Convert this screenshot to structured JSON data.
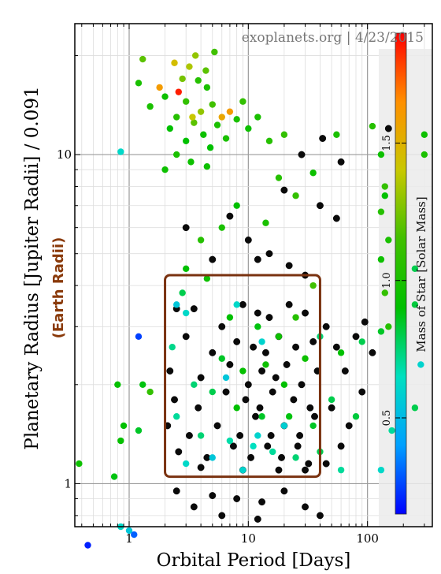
{
  "chart_data": {
    "type": "scatter",
    "watermark": "exoplanets.org | 4/23/2015",
    "xlabel": "Orbital Period [Days]",
    "ylabel": "Planetary Radius [Jupiter Radii] / 0.091",
    "ylabel2": "(Earth Radii)",
    "x_scale": "log",
    "y_scale": "log",
    "xlim": [
      0.35,
      350
    ],
    "ylim": [
      0.74,
      25
    ],
    "x_ticks": [
      {
        "v": 1,
        "label": "1"
      },
      {
        "v": 10,
        "label": "10"
      },
      {
        "v": 100,
        "label": "100"
      }
    ],
    "y_ticks": [
      {
        "v": 1,
        "label": "1"
      },
      {
        "v": 10,
        "label": "10"
      }
    ],
    "grid": true,
    "colorbar": {
      "label": "Mass of Star [Solar Mass]",
      "range": [
        0.15,
        1.9
      ],
      "ticks": [
        {
          "v": 0.5,
          "label": "0.5"
        },
        {
          "v": 1.0,
          "label": "1.0"
        },
        {
          "v": 1.5,
          "label": "1.5"
        }
      ],
      "colors": [
        "#0000ff",
        "#00a0ff",
        "#00e0c0",
        "#00c000",
        "#40c000",
        "#c8c800",
        "#ff9000",
        "#ff0000"
      ]
    },
    "highlight_box": {
      "x0": 2.0,
      "x1": 40,
      "y0": 1.05,
      "y1": 4.3
    },
    "series": [
      {
        "marker": "black",
        "points": [
          [
            2.5,
            3.4
          ],
          [
            3.5,
            3.4
          ],
          [
            6,
            3.0
          ],
          [
            9,
            3.5
          ],
          [
            12,
            3.3
          ],
          [
            15,
            3.2
          ],
          [
            22,
            3.5
          ],
          [
            30,
            3.3
          ],
          [
            3,
            2.8
          ],
          [
            5,
            2.5
          ],
          [
            8,
            2.7
          ],
          [
            11,
            2.6
          ],
          [
            14,
            2.5
          ],
          [
            18,
            2.8
          ],
          [
            25,
            2.6
          ],
          [
            35,
            2.7
          ],
          [
            2.2,
            2.2
          ],
          [
            4,
            2.1
          ],
          [
            7,
            2.3
          ],
          [
            10,
            2.0
          ],
          [
            13,
            2.2
          ],
          [
            17,
            2.1
          ],
          [
            21,
            2.3
          ],
          [
            28,
            2.0
          ],
          [
            38,
            2.2
          ],
          [
            2.4,
            1.8
          ],
          [
            3.8,
            1.7
          ],
          [
            6.5,
            1.9
          ],
          [
            9.5,
            1.8
          ],
          [
            12.5,
            1.7
          ],
          [
            16,
            1.9
          ],
          [
            24,
            1.8
          ],
          [
            33,
            1.7
          ],
          [
            2.1,
            1.5
          ],
          [
            3.2,
            1.4
          ],
          [
            5.5,
            1.5
          ],
          [
            8.5,
            1.4
          ],
          [
            11.5,
            1.6
          ],
          [
            15.5,
            1.4
          ],
          [
            20,
            1.5
          ],
          [
            27,
            1.4
          ],
          [
            36,
            1.6
          ],
          [
            2.6,
            1.25
          ],
          [
            4.5,
            1.2
          ],
          [
            7.5,
            1.3
          ],
          [
            10.5,
            1.2
          ],
          [
            14.5,
            1.3
          ],
          [
            19,
            1.2
          ],
          [
            26,
            1.3
          ],
          [
            32,
            1.15
          ],
          [
            4,
            1.12
          ],
          [
            9,
            1.1
          ],
          [
            18,
            1.1
          ],
          [
            30,
            1.1
          ],
          [
            45,
            3.0
          ],
          [
            55,
            2.6
          ],
          [
            65,
            2.2
          ],
          [
            80,
            2.8
          ],
          [
            95,
            3.1
          ],
          [
            110,
            2.5
          ],
          [
            50,
            1.7
          ],
          [
            70,
            1.5
          ],
          [
            90,
            1.9
          ],
          [
            60,
            1.3
          ],
          [
            45,
            1.15
          ],
          [
            2.5,
            0.95
          ],
          [
            5,
            0.92
          ],
          [
            8,
            0.9
          ],
          [
            13,
            0.88
          ],
          [
            20,
            0.95
          ],
          [
            30,
            0.85
          ],
          [
            12,
            0.78
          ],
          [
            6,
            0.8
          ],
          [
            3.5,
            0.85
          ],
          [
            40,
            0.8
          ],
          [
            7,
            6.5
          ],
          [
            10,
            5.5
          ],
          [
            15,
            5.0
          ],
          [
            22,
            4.6
          ],
          [
            3,
            6.0
          ],
          [
            5,
            4.8
          ],
          [
            20,
            7.8
          ],
          [
            40,
            7.0
          ],
          [
            55,
            6.4
          ],
          [
            30,
            4.3
          ],
          [
            12,
            4.8
          ],
          [
            60,
            9.5
          ],
          [
            28,
            10.0
          ],
          [
            150,
            12.0
          ],
          [
            42,
            11.2
          ]
        ]
      },
      {
        "marker": "colored",
        "points": [
          [
            1.5,
            14,
            1.0
          ],
          [
            2,
            15,
            0.95
          ],
          [
            2.5,
            13,
            1.05
          ],
          [
            3,
            14.5,
            1.1
          ],
          [
            3.5,
            12.5,
            1.2
          ],
          [
            4,
            13.5,
            1.3
          ],
          [
            4.5,
            16,
            1.0
          ],
          [
            5,
            14.2,
            1.15
          ],
          [
            2.8,
            17,
            1.25
          ],
          [
            3.2,
            18.5,
            1.35
          ],
          [
            3.8,
            16.8,
            1.05
          ],
          [
            2.2,
            12,
            0.9
          ],
          [
            4.2,
            11.5,
            0.95
          ],
          [
            5.5,
            12.3,
            1.0
          ],
          [
            3,
            11,
            0.9
          ],
          [
            2.4,
            19,
            1.45
          ],
          [
            3.6,
            20,
            1.3
          ],
          [
            4.4,
            18,
            1.2
          ],
          [
            1.8,
            16,
            1.6
          ],
          [
            2.6,
            15.5,
            1.85
          ],
          [
            3.4,
            13,
            1.4
          ],
          [
            6,
            13,
            1.55
          ],
          [
            7,
            13.5,
            1.6
          ],
          [
            8,
            12.8,
            1.0
          ],
          [
            10,
            12,
            0.95
          ],
          [
            15,
            11,
            1.05
          ],
          [
            9,
            14.5,
            1.1
          ],
          [
            12,
            13,
            1.0
          ],
          [
            4.8,
            10.5,
            0.9
          ],
          [
            3.3,
            9.5,
            0.95
          ],
          [
            2.5,
            10,
            1.0
          ],
          [
            6.5,
            11.2,
            1.0
          ],
          [
            1.3,
            19.5,
            1.2
          ],
          [
            1.2,
            16.5,
            1.0
          ],
          [
            2,
            9,
            0.95
          ],
          [
            4.5,
            9.2,
            0.95
          ],
          [
            5.2,
            20.5,
            1.15
          ],
          [
            20,
            11.5,
            1.1
          ],
          [
            18,
            8.5,
            1.05
          ],
          [
            35,
            8.8,
            0.95
          ],
          [
            55,
            11.5,
            1.0
          ],
          [
            110,
            12.2,
            1.05
          ],
          [
            130,
            10,
            0.95
          ],
          [
            8,
            7,
            0.9
          ],
          [
            14,
            6.2,
            1.0
          ],
          [
            25,
            7.5,
            1.1
          ],
          [
            35,
            4,
            1.15
          ],
          [
            2.8,
            3.8,
            0.8
          ],
          [
            4.5,
            4.2,
            0.95
          ],
          [
            7,
            3.2,
            0.9
          ],
          [
            12,
            3.0,
            0.88
          ],
          [
            18,
            2.8,
            0.95
          ],
          [
            25,
            3.2,
            1.05
          ],
          [
            40,
            2.8,
            0.75
          ],
          [
            60,
            2.5,
            0.9
          ],
          [
            90,
            2.7,
            0.8
          ],
          [
            6,
            2.4,
            0.85
          ],
          [
            9,
            2.2,
            0.92
          ],
          [
            14,
            2.3,
            0.95
          ],
          [
            20,
            2.0,
            0.9
          ],
          [
            30,
            2.4,
            0.95
          ],
          [
            3.5,
            2.0,
            0.75
          ],
          [
            5,
            1.9,
            0.8
          ],
          [
            8,
            1.7,
            0.9
          ],
          [
            13,
            1.6,
            0.85
          ],
          [
            22,
            1.6,
            0.88
          ],
          [
            35,
            1.5,
            0.85
          ],
          [
            50,
            1.8,
            0.8
          ],
          [
            80,
            1.6,
            0.82
          ],
          [
            2.5,
            1.6,
            0.7
          ],
          [
            4,
            1.4,
            0.75
          ],
          [
            7,
            1.35,
            0.68
          ],
          [
            11,
            1.3,
            0.65
          ],
          [
            16,
            1.25,
            0.7
          ],
          [
            25,
            1.2,
            0.75
          ],
          [
            40,
            1.25,
            0.8
          ],
          [
            60,
            1.1,
            0.7
          ],
          [
            2.3,
            2.6,
            0.72
          ],
          [
            3,
            3.3,
            0.62
          ],
          [
            2.5,
            3.5,
            0.55
          ],
          [
            8,
            3.5,
            0.62
          ],
          [
            13,
            2.7,
            0.6
          ],
          [
            6.5,
            2.1,
            0.55
          ],
          [
            12,
            1.4,
            0.6
          ],
          [
            20,
            1.5,
            0.58
          ],
          [
            5,
            1.2,
            0.55
          ],
          [
            9,
            1.1,
            0.6
          ],
          [
            3,
            1.15,
            0.62
          ],
          [
            1.5,
            1.9,
            1.1
          ],
          [
            1.3,
            2.0,
            0.88
          ],
          [
            1.2,
            1.45,
            0.85
          ],
          [
            0.8,
            2.0,
            0.92
          ],
          [
            0.9,
            1.5,
            0.9
          ],
          [
            0.85,
            1.35,
            0.92
          ],
          [
            0.75,
            1.05,
            0.88
          ],
          [
            0.38,
            1.15,
            0.95
          ],
          [
            0.85,
            0.74,
            0.62
          ],
          [
            1.0,
            0.72,
            0.55
          ],
          [
            0.45,
            0.65,
            0.2
          ],
          [
            1.2,
            2.8,
            0.25
          ],
          [
            1.1,
            0.7,
            0.3
          ],
          [
            0.85,
            10.2,
            0.62
          ],
          [
            4,
            5.5,
            1.05
          ],
          [
            6,
            6.0,
            1.0
          ],
          [
            3,
            4.5,
            0.9
          ],
          [
            150,
            3.0,
            1.05
          ],
          [
            140,
            3.8,
            1.1
          ],
          [
            130,
            4.8,
            0.95
          ],
          [
            150,
            5.5,
            1.0
          ],
          [
            130,
            6.7,
            1.05
          ],
          [
            140,
            7.5,
            0.9
          ],
          [
            140,
            8.0,
            1.1
          ],
          [
            300,
            11.5,
            0.95
          ],
          [
            300,
            10.0,
            1.0
          ],
          [
            250,
            4.5,
            0.8
          ],
          [
            250,
            3.5,
            0.82
          ],
          [
            280,
            2.3,
            0.6
          ],
          [
            250,
            1.7,
            0.8
          ],
          [
            130,
            2.9,
            0.85
          ],
          [
            130,
            1.1,
            0.62
          ],
          [
            160,
            1.45,
            0.7
          ]
        ]
      }
    ]
  }
}
